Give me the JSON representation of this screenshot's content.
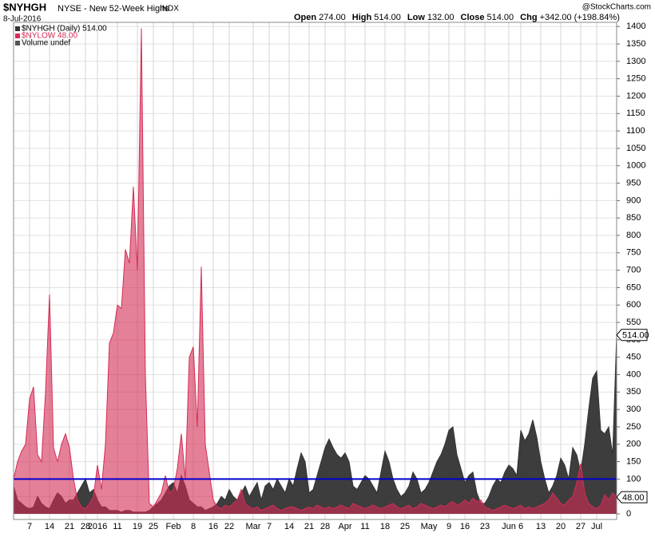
{
  "header": {
    "symbol": "$NYHGH",
    "name": "NYSE - New 52-Week Highs",
    "exchange": "INDX",
    "date": "8-Jul-2016",
    "quote": [
      {
        "label": "Open",
        "value": "274.00"
      },
      {
        "label": "High",
        "value": "514.00"
      },
      {
        "label": "Low",
        "value": "132.00"
      },
      {
        "label": "Close",
        "value": "514.00"
      },
      {
        "label": "Chg",
        "value": "+342.00 (+198.84%)"
      }
    ],
    "credit": "@StockCharts.com"
  },
  "chart_data": {
    "type": "area",
    "legend": [
      "$NYHGH (Daily) 514.00",
      "$NYLOW 48.00",
      "Volume undef"
    ],
    "x": [
      0,
      1,
      2,
      3,
      4,
      5,
      6,
      7,
      8,
      9,
      10,
      11,
      12,
      13,
      14,
      15,
      16,
      17,
      18,
      19,
      20,
      21,
      22,
      23,
      24,
      25,
      26,
      27,
      28,
      29,
      30,
      31,
      32,
      33,
      34,
      35,
      36,
      37,
      38,
      39,
      40,
      41,
      42,
      43,
      44,
      45,
      46,
      47,
      48,
      49,
      50,
      51,
      52,
      53,
      54,
      55,
      56,
      57,
      58,
      59,
      60,
      61,
      62,
      63,
      64,
      65,
      66,
      67,
      68,
      69,
      70,
      71,
      72,
      73,
      74,
      75,
      76,
      77,
      78,
      79,
      80,
      81,
      82,
      83,
      84,
      85,
      86,
      87,
      88,
      89,
      90,
      91,
      92,
      93,
      94,
      95,
      96,
      97,
      98,
      99,
      100,
      101,
      102,
      103,
      104,
      105,
      106,
      107,
      108,
      109,
      110,
      111,
      112,
      113,
      114,
      115,
      116,
      117,
      118,
      119,
      120,
      121,
      122,
      123,
      124,
      125,
      126,
      127,
      128,
      129,
      130,
      131,
      132,
      133,
      134,
      135,
      136,
      137,
      138,
      139,
      140,
      141,
      142,
      143,
      144,
      145,
      146,
      147,
      148,
      149,
      150,
      151
    ],
    "series": [
      {
        "name": "$NYHGH",
        "color": "#333333",
        "last_label": "514.00",
        "values": [
          80,
          40,
          30,
          20,
          15,
          20,
          50,
          30,
          20,
          15,
          40,
          60,
          50,
          30,
          40,
          40,
          60,
          80,
          100,
          60,
          70,
          40,
          20,
          20,
          10,
          10,
          10,
          5,
          10,
          10,
          5,
          5,
          5,
          5,
          10,
          20,
          30,
          40,
          60,
          80,
          90,
          60,
          110,
          80,
          40,
          30,
          20,
          20,
          10,
          15,
          20,
          30,
          50,
          40,
          70,
          50,
          40,
          60,
          80,
          50,
          70,
          90,
          40,
          80,
          90,
          70,
          100,
          80,
          60,
          100,
          80,
          130,
          175,
          150,
          60,
          70,
          110,
          150,
          190,
          215,
          190,
          170,
          160,
          175,
          150,
          80,
          70,
          90,
          110,
          100,
          80,
          60,
          120,
          180,
          150,
          100,
          70,
          50,
          60,
          80,
          120,
          100,
          60,
          70,
          90,
          120,
          150,
          170,
          200,
          240,
          250,
          170,
          130,
          90,
          110,
          120,
          60,
          30,
          30,
          50,
          80,
          100,
          90,
          120,
          140,
          130,
          110,
          240,
          210,
          230,
          270,
          220,
          150,
          100,
          60,
          80,
          110,
          160,
          140,
          100,
          190,
          170,
          120,
          200,
          300,
          390,
          410,
          240,
          230,
          250,
          170,
          514
        ]
      },
      {
        "name": "$NYLOW",
        "color": "#d42c55",
        "last_label": "48.00",
        "values": [
          100,
          150,
          180,
          200,
          330,
          365,
          170,
          150,
          350,
          630,
          190,
          150,
          200,
          230,
          190,
          100,
          40,
          20,
          15,
          30,
          50,
          140,
          70,
          200,
          490,
          520,
          600,
          590,
          760,
          720,
          940,
          700,
          1395,
          400,
          30,
          20,
          40,
          60,
          110,
          60,
          70,
          130,
          230,
          100,
          450,
          480,
          250,
          710,
          200,
          120,
          40,
          20,
          15,
          25,
          20,
          30,
          40,
          70,
          30,
          20,
          15,
          20,
          10,
          15,
          20,
          25,
          15,
          10,
          15,
          20,
          20,
          15,
          10,
          15,
          20,
          15,
          25,
          20,
          15,
          20,
          15,
          20,
          25,
          20,
          15,
          30,
          25,
          20,
          15,
          20,
          25,
          20,
          15,
          20,
          25,
          30,
          20,
          15,
          20,
          25,
          15,
          20,
          30,
          25,
          20,
          15,
          20,
          25,
          20,
          30,
          35,
          25,
          30,
          40,
          30,
          45,
          35,
          40,
          20,
          15,
          10,
          15,
          20,
          25,
          20,
          15,
          20,
          25,
          15,
          20,
          15,
          20,
          25,
          30,
          40,
          60,
          45,
          30,
          25,
          40,
          50,
          90,
          145,
          60,
          30,
          20,
          15,
          25,
          55,
          40,
          60,
          48
        ]
      }
    ],
    "hline": 100,
    "hline_color": "#0000cc",
    "xlim": [
      0,
      151
    ],
    "xticks": [
      {
        "value": 4,
        "label": "7"
      },
      {
        "value": 9,
        "label": "14"
      },
      {
        "value": 14,
        "label": "21"
      },
      {
        "value": 18,
        "label": "28"
      },
      {
        "value": 21,
        "label": "2016"
      },
      {
        "value": 26,
        "label": "11"
      },
      {
        "value": 31,
        "label": "19"
      },
      {
        "value": 35,
        "label": "25"
      },
      {
        "value": 40,
        "label": "Feb"
      },
      {
        "value": 45,
        "label": "8"
      },
      {
        "value": 50,
        "label": "16"
      },
      {
        "value": 54,
        "label": "22"
      },
      {
        "value": 60,
        "label": "Mar"
      },
      {
        "value": 64,
        "label": "7"
      },
      {
        "value": 69,
        "label": "14"
      },
      {
        "value": 74,
        "label": "21"
      },
      {
        "value": 78,
        "label": "28"
      },
      {
        "value": 83,
        "label": "Apr"
      },
      {
        "value": 88,
        "label": "11"
      },
      {
        "value": 93,
        "label": "18"
      },
      {
        "value": 98,
        "label": "25"
      },
      {
        "value": 104,
        "label": "May"
      },
      {
        "value": 109,
        "label": "9"
      },
      {
        "value": 113,
        "label": "16"
      },
      {
        "value": 118,
        "label": "23"
      },
      {
        "value": 124,
        "label": "Jun"
      },
      {
        "value": 127,
        "label": "6"
      },
      {
        "value": 132,
        "label": "13"
      },
      {
        "value": 137,
        "label": "20"
      },
      {
        "value": 142,
        "label": "27"
      },
      {
        "value": 146,
        "label": "Jul"
      }
    ],
    "ylim": [
      -16,
      1412
    ],
    "yticks": [
      0,
      50,
      100,
      150,
      200,
      250,
      300,
      350,
      400,
      450,
      500,
      550,
      600,
      650,
      700,
      750,
      800,
      850,
      900,
      950,
      1000,
      1050,
      1100,
      1150,
      1200,
      1250,
      1300,
      1350,
      1400
    ],
    "grid": true
  }
}
